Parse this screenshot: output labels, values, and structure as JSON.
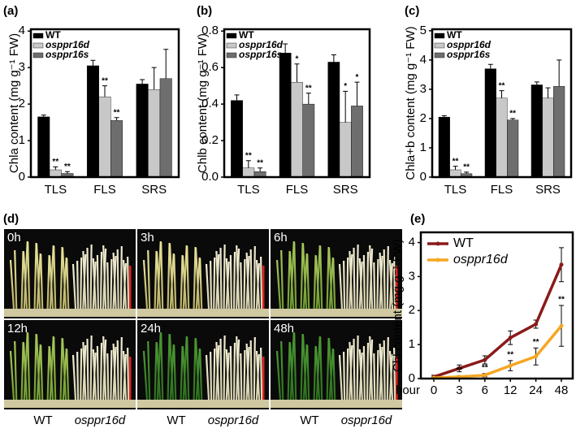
{
  "chart_data": [
    {
      "type": "bar",
      "panel_label": "(a)",
      "ylabel": "Chla content (mg g⁻¹ FW)",
      "categories": [
        "TLS",
        "FLS",
        "SRS"
      ],
      "series": [
        {
          "name": "WT",
          "color": "#000000",
          "values": [
            1.65,
            3.05,
            2.55
          ],
          "errors": [
            0.05,
            0.15,
            0.12
          ],
          "significance": [
            null,
            null,
            null
          ]
        },
        {
          "name": "osppr16d",
          "color": "#c8c8c8",
          "values": [
            0.2,
            2.2,
            2.4
          ],
          "errors": [
            0.08,
            0.3,
            0.6
          ],
          "significance": [
            "**",
            "**",
            null
          ]
        },
        {
          "name": "osppr16s",
          "color": "#6e6e6e",
          "values": [
            0.1,
            1.55,
            2.7
          ],
          "errors": [
            0.05,
            0.08,
            0.8
          ],
          "significance": [
            "**",
            "**",
            null
          ]
        }
      ],
      "ylim": [
        0,
        4.05
      ],
      "yticks": [
        0,
        1,
        2,
        3,
        4
      ]
    },
    {
      "type": "bar",
      "panel_label": "(b)",
      "ylabel": "Chlb content (mg g⁻¹ FW)",
      "categories": [
        "TLS",
        "FLS",
        "SRS"
      ],
      "series": [
        {
          "name": "WT",
          "color": "#000000",
          "values": [
            0.42,
            0.68,
            0.63
          ],
          "errors": [
            0.03,
            0.05,
            0.04
          ],
          "significance": [
            null,
            null,
            null
          ]
        },
        {
          "name": "osppr16d",
          "color": "#c8c8c8",
          "values": [
            0.05,
            0.52,
            0.3
          ],
          "errors": [
            0.04,
            0.1,
            0.17
          ],
          "significance": [
            "**",
            "*",
            "*"
          ]
        },
        {
          "name": "osppr16s",
          "color": "#6e6e6e",
          "values": [
            0.03,
            0.4,
            0.39
          ],
          "errors": [
            0.02,
            0.06,
            0.13
          ],
          "significance": [
            "**",
            "**",
            "*"
          ]
        }
      ],
      "ylim": [
        0,
        0.81
      ],
      "yticks": [
        {
          "value": 0,
          "label": "0.0"
        },
        0.2,
        0.4,
        0.6,
        0.8
      ]
    },
    {
      "type": "bar",
      "panel_label": "(c)",
      "ylabel": "Chla+b content (mg g⁻¹ FW)",
      "categories": [
        "TLS",
        "FLS",
        "SRS"
      ],
      "series": [
        {
          "name": "WT",
          "color": "#000000",
          "values": [
            2.05,
            3.7,
            3.15
          ],
          "errors": [
            0.05,
            0.15,
            0.1
          ],
          "significance": [
            null,
            null,
            null
          ]
        },
        {
          "name": "osppr16d",
          "color": "#c8c8c8",
          "values": [
            0.25,
            2.7,
            2.7
          ],
          "errors": [
            0.12,
            0.25,
            0.35
          ],
          "significance": [
            "**",
            "**",
            null
          ]
        },
        {
          "name": "osppr16s",
          "color": "#6e6e6e",
          "values": [
            0.12,
            1.95,
            3.1
          ],
          "errors": [
            0.05,
            0.05,
            0.9
          ],
          "significance": [
            "**",
            "**",
            null
          ]
        }
      ],
      "ylim": [
        0,
        5.05
      ],
      "yticks": [
        0,
        1,
        2,
        3,
        4,
        5
      ]
    },
    {
      "type": "line",
      "panel_label": "(e)",
      "ylabel": "Chl content (mg g⁻¹ FW)",
      "xlabel": "hour",
      "categories": [
        "0",
        "3",
        "6",
        "12",
        "24",
        "48"
      ],
      "series": [
        {
          "name": "WT",
          "color": "#8b1a1a",
          "values": [
            0.05,
            0.3,
            0.55,
            1.2,
            1.6,
            3.35
          ],
          "errors": [
            0.05,
            0.1,
            0.12,
            0.2,
            0.12,
            0.5
          ],
          "significance": [
            null,
            null,
            null,
            null,
            null,
            null
          ]
        },
        {
          "name": "osppr16d",
          "color": "#f5a623",
          "values": [
            0.02,
            0.05,
            0.1,
            0.38,
            0.65,
            1.55
          ],
          "errors": [
            0.02,
            0.03,
            0.05,
            0.15,
            0.25,
            0.6
          ],
          "significance": [
            null,
            "**",
            "**",
            "**",
            "**",
            "**"
          ]
        }
      ],
      "ylim": [
        0,
        4.3
      ],
      "yticks": [
        0,
        1,
        2,
        3,
        4
      ]
    }
  ],
  "photo_panel": {
    "panel_label": "(d)",
    "time_labels": [
      "0h",
      "3h",
      "6h",
      "12h",
      "24h",
      "48h"
    ],
    "genotype_labels": [
      "WT",
      "osppr16d",
      "WT",
      "osppr16d",
      "WT",
      "osppr16d"
    ]
  }
}
